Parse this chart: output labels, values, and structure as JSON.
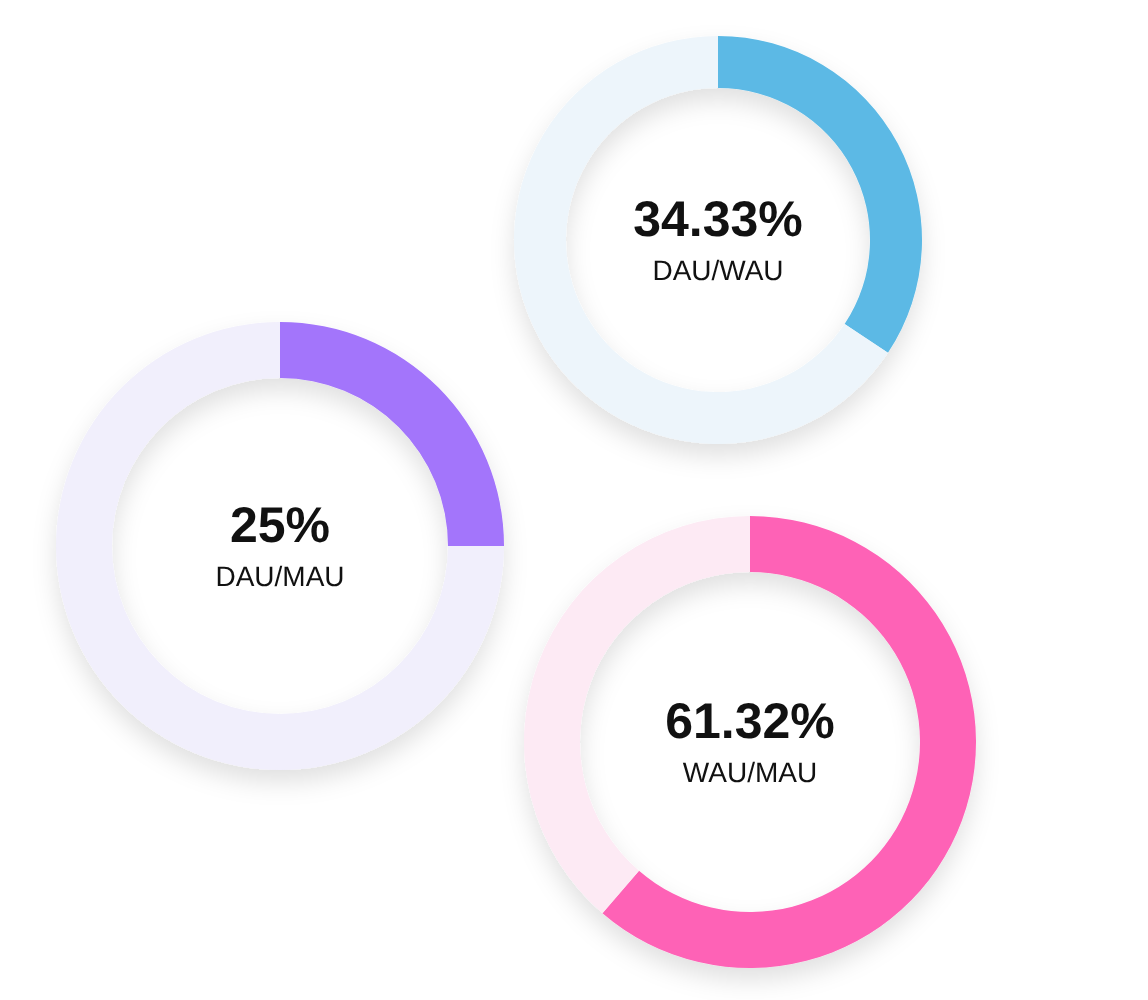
{
  "chart_data": [
    {
      "type": "donut",
      "title": "DAU/WAU",
      "categories": [
        null,
        null
      ],
      "values": [
        34.33,
        65.67
      ],
      "colors": [
        "#5bb9e5",
        "#edf5fb"
      ],
      "value_labels": [
        "34.33%",
        null
      ]
    },
    {
      "type": "donut",
      "title": "DAU/MAU",
      "categories": [
        null,
        null
      ],
      "values": [
        25,
        75
      ],
      "colors": [
        "#a374fb",
        "#f1effc"
      ],
      "value_labels": [
        "25%",
        null
      ]
    },
    {
      "type": "donut",
      "title": "WAU/MAU",
      "categories": [
        null,
        null
      ],
      "values": [
        61.32,
        38.68
      ],
      "colors": [
        "#fe62b6",
        "#fdeaf4"
      ],
      "value_labels": [
        "61.32%",
        null
      ]
    }
  ]
}
